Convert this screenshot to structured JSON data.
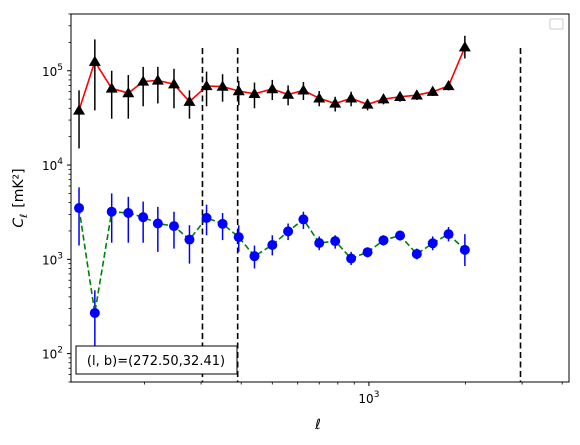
{
  "chart_data": {
    "type": "line",
    "xlabel": "ℓ",
    "ylabel_main": "C",
    "ylabel_sub": "ℓ",
    "ylabel_unit": "[mK²]",
    "x_scale": "log",
    "y_scale": "log",
    "xlim": [
      118,
      4200
    ],
    "ylim": [
      50,
      400000
    ],
    "x_ticks": [
      {
        "value": 1000,
        "base": "10",
        "exp": "3"
      }
    ],
    "y_ticks": [
      {
        "value": 100,
        "base": "10",
        "exp": "2"
      },
      {
        "value": 1000,
        "base": "10",
        "exp": "3"
      },
      {
        "value": 10000,
        "base": "10",
        "exp": "4"
      },
      {
        "value": 100000,
        "base": "10",
        "exp": "5"
      }
    ],
    "legend": "top-right",
    "annotation": "(l, b)=(272.50,32.41)",
    "vlines": [
      303,
      390,
      2966
    ],
    "series": [
      {
        "line_color": "#ff0000",
        "line_style": "solid",
        "marker": "triangle",
        "marker_color": "#000000",
        "errorbar_color": "#000000",
        "points": [
          {
            "x": 125,
            "y": 38000,
            "lo": 15000,
            "hi": 62000
          },
          {
            "x": 140,
            "y": 125000,
            "lo": 38000,
            "hi": 215000
          },
          {
            "x": 158,
            "y": 65000,
            "lo": 31000,
            "hi": 100000
          },
          {
            "x": 178,
            "y": 58000,
            "lo": 31000,
            "hi": 90000
          },
          {
            "x": 198,
            "y": 77000,
            "lo": 42000,
            "hi": 110000
          },
          {
            "x": 220,
            "y": 79000,
            "lo": 45000,
            "hi": 110000
          },
          {
            "x": 247,
            "y": 72000,
            "lo": 40000,
            "hi": 105000
          },
          {
            "x": 276,
            "y": 47000,
            "lo": 31000,
            "hi": 62000
          },
          {
            "x": 312,
            "y": 69000,
            "lo": 42000,
            "hi": 98000
          },
          {
            "x": 350,
            "y": 68000,
            "lo": 47000,
            "hi": 92000
          },
          {
            "x": 393,
            "y": 61000,
            "lo": 43000,
            "hi": 78000
          },
          {
            "x": 440,
            "y": 57000,
            "lo": 40000,
            "hi": 75000
          },
          {
            "x": 500,
            "y": 64000,
            "lo": 49000,
            "hi": 80000
          },
          {
            "x": 560,
            "y": 56000,
            "lo": 43000,
            "hi": 70000
          },
          {
            "x": 625,
            "y": 62000,
            "lo": 49000,
            "hi": 76000
          },
          {
            "x": 700,
            "y": 51000,
            "lo": 42000,
            "hi": 61000
          },
          {
            "x": 785,
            "y": 45000,
            "lo": 37000,
            "hi": 53000
          },
          {
            "x": 880,
            "y": 51000,
            "lo": 42000,
            "hi": 60000
          },
          {
            "x": 990,
            "y": 44000,
            "lo": 38000,
            "hi": 50000
          },
          {
            "x": 1110,
            "y": 50000,
            "lo": 44000,
            "hi": 56000
          },
          {
            "x": 1250,
            "y": 53000,
            "lo": 47000,
            "hi": 59000
          },
          {
            "x": 1410,
            "y": 55000,
            "lo": 49000,
            "hi": 61000
          },
          {
            "x": 1580,
            "y": 60000,
            "lo": 54000,
            "hi": 67000
          },
          {
            "x": 1770,
            "y": 69000,
            "lo": 62000,
            "hi": 78000
          },
          {
            "x": 1990,
            "y": 178000,
            "lo": 135000,
            "hi": 235000
          }
        ]
      },
      {
        "line_color": "#008000",
        "line_style": "dashed",
        "marker": "circle",
        "marker_color": "#0000ff",
        "errorbar_color": "#0000ff",
        "points": [
          {
            "x": 125,
            "y": 3500,
            "lo": 1400,
            "hi": 5800
          },
          {
            "x": 140,
            "y": 270,
            "lo": 110,
            "hi": 470
          },
          {
            "x": 158,
            "y": 3200,
            "lo": 1500,
            "hi": 5000
          },
          {
            "x": 178,
            "y": 3100,
            "lo": 1500,
            "hi": 4600
          },
          {
            "x": 198,
            "y": 2800,
            "lo": 1500,
            "hi": 4100
          },
          {
            "x": 220,
            "y": 2400,
            "lo": 1200,
            "hi": 3600
          },
          {
            "x": 247,
            "y": 2250,
            "lo": 1300,
            "hi": 3200
          },
          {
            "x": 276,
            "y": 1620,
            "lo": 900,
            "hi": 2300
          },
          {
            "x": 312,
            "y": 2750,
            "lo": 1800,
            "hi": 3800
          },
          {
            "x": 350,
            "y": 2380,
            "lo": 1600,
            "hi": 3100
          },
          {
            "x": 393,
            "y": 1720,
            "lo": 1200,
            "hi": 2300
          },
          {
            "x": 440,
            "y": 1080,
            "lo": 800,
            "hi": 1400
          },
          {
            "x": 500,
            "y": 1420,
            "lo": 1100,
            "hi": 1800
          },
          {
            "x": 560,
            "y": 1980,
            "lo": 1600,
            "hi": 2400
          },
          {
            "x": 625,
            "y": 2650,
            "lo": 2100,
            "hi": 3200
          },
          {
            "x": 700,
            "y": 1490,
            "lo": 1250,
            "hi": 1750
          },
          {
            "x": 785,
            "y": 1560,
            "lo": 1300,
            "hi": 1800
          },
          {
            "x": 880,
            "y": 1020,
            "lo": 870,
            "hi": 1200
          },
          {
            "x": 990,
            "y": 1190,
            "lo": 1050,
            "hi": 1330
          },
          {
            "x": 1110,
            "y": 1590,
            "lo": 1400,
            "hi": 1800
          },
          {
            "x": 1250,
            "y": 1790,
            "lo": 1580,
            "hi": 2000
          },
          {
            "x": 1410,
            "y": 1140,
            "lo": 1000,
            "hi": 1300
          },
          {
            "x": 1580,
            "y": 1480,
            "lo": 1250,
            "hi": 1750
          },
          {
            "x": 1770,
            "y": 1850,
            "lo": 1550,
            "hi": 2200
          },
          {
            "x": 1990,
            "y": 1260,
            "lo": 850,
            "hi": 1850
          }
        ]
      }
    ]
  }
}
